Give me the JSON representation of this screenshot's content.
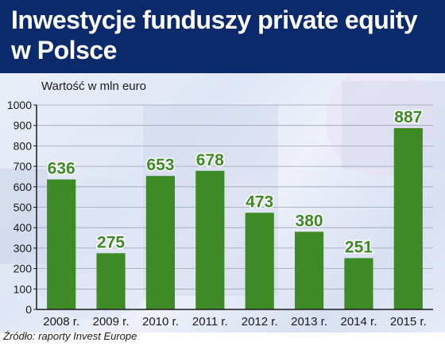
{
  "header": {
    "title": "Inwestycje funduszy private equity w Polsce"
  },
  "footer": {
    "source": "Źródło: raporty Invest Europe"
  },
  "colors": {
    "title_band": "#0b2a6b",
    "bar": "#3d8a26",
    "value_label": "#3d8a26",
    "axis": "#1a1a1a",
    "grid": "#9aa3b5"
  },
  "chart_data": {
    "type": "bar",
    "title": "Inwestycje funduszy private equity w Polsce",
    "ylabel": "Wartość w mln euro",
    "xlabel": "",
    "categories": [
      "2008 r.",
      "2009 r.",
      "2010 r.",
      "2011 r.",
      "2012 r.",
      "2013 r.",
      "2014 r.",
      "2015 r."
    ],
    "values": [
      636,
      275,
      653,
      678,
      473,
      380,
      251,
      887
    ],
    "ylim": [
      0,
      1000
    ],
    "yticks": [
      0,
      100,
      200,
      300,
      400,
      500,
      600,
      700,
      800,
      900,
      1000
    ],
    "grid": true,
    "data_labels": true,
    "legend": "none"
  }
}
